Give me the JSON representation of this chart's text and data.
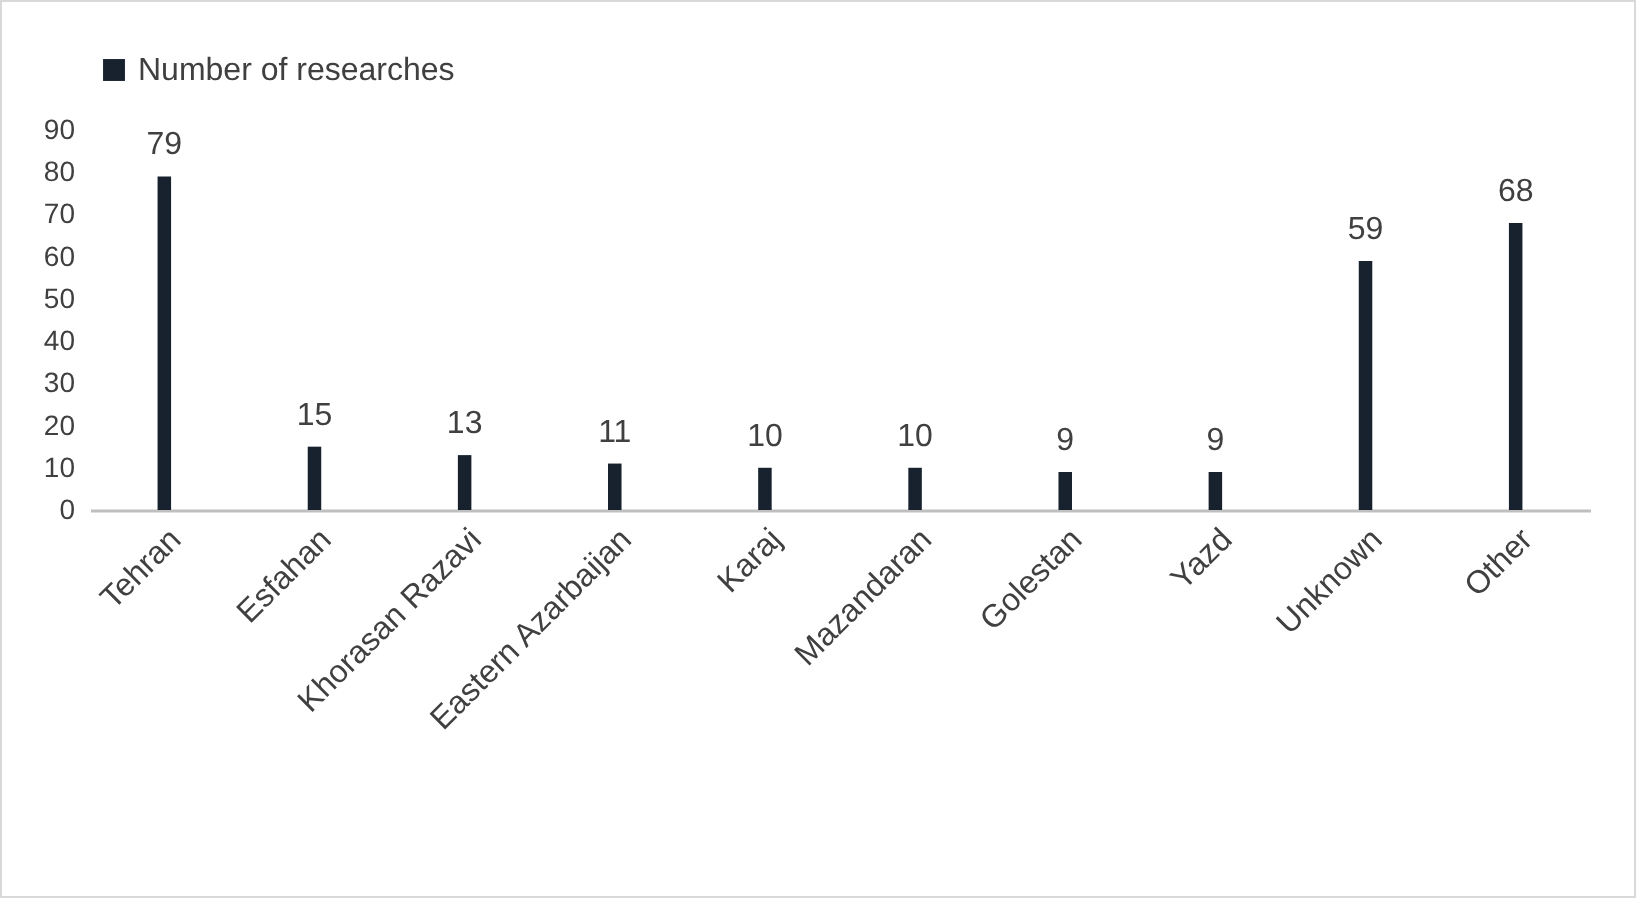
{
  "chart_data": {
    "type": "bar",
    "categories": [
      "Tehran",
      "Esfahan",
      "Khorasan Razavi",
      "Eastern Azarbaijan",
      "Karaj",
      "Mazandaran",
      "Golestan",
      "Yazd",
      "Unknown",
      "Other"
    ],
    "series": [
      {
        "name": "Number of researches",
        "color": "#18222f",
        "values": [
          79,
          15,
          13,
          11,
          10,
          10,
          9,
          9,
          59,
          68
        ]
      }
    ],
    "ylim": [
      0,
      90
    ],
    "yticks": [
      0,
      10,
      20,
      30,
      40,
      50,
      60,
      70,
      80,
      90
    ],
    "data_labels": true,
    "legend": "top",
    "grid": false
  }
}
